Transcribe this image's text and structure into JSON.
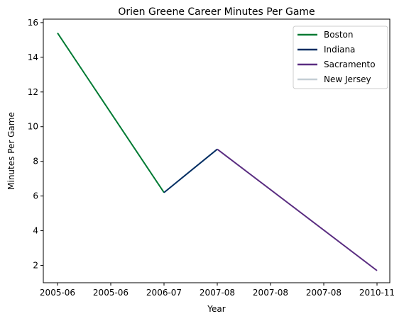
{
  "chart_data": {
    "type": "line",
    "title": "Orien Greene Career Minutes Per Game",
    "xlabel": "Year",
    "ylabel": "Minutes Per Game",
    "x_tick_labels": [
      "2005-06",
      "2005-06",
      "2006-07",
      "2007-08",
      "2007-08",
      "2007-08",
      "2010-11"
    ],
    "ylim": [
      1.0,
      16.2
    ],
    "y_ticks": [
      2,
      4,
      6,
      8,
      10,
      12,
      14,
      16
    ],
    "grid": false,
    "legend_position": "top-right",
    "series": [
      {
        "name": "Boston",
        "color": "#007A33",
        "points": [
          {
            "x": "2005-06",
            "y": 15.4
          },
          {
            "x": "2006-07",
            "y": 6.2
          }
        ]
      },
      {
        "name": "Indiana",
        "color": "#002D62",
        "points": [
          {
            "x": "2006-07",
            "y": 6.2
          },
          {
            "x": "2007-08",
            "y": 8.7
          }
        ]
      },
      {
        "name": "Sacramento",
        "color": "#5A2D81",
        "points": [
          {
            "x": "2007-08",
            "y": 8.7
          },
          {
            "x": "2010-11",
            "y": 1.7
          }
        ]
      },
      {
        "name": "New Jersey",
        "color": "#C4CED4",
        "points": []
      }
    ]
  }
}
